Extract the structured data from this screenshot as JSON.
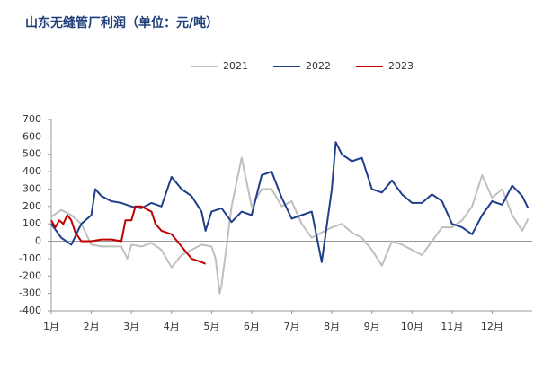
{
  "chart_data": {
    "type": "line",
    "title": "山东无缝管厂利润（单位：元/吨）",
    "xlim": [
      0,
      12
    ],
    "xticks": [
      {
        "value": 0,
        "label": "1月"
      },
      {
        "value": 1,
        "label": "2月"
      },
      {
        "value": 2,
        "label": "3月"
      },
      {
        "value": 3,
        "label": "4月"
      },
      {
        "value": 4,
        "label": "5月"
      },
      {
        "value": 5,
        "label": "6月"
      },
      {
        "value": 6,
        "label": "7月"
      },
      {
        "value": 7,
        "label": "8月"
      },
      {
        "value": 8,
        "label": "9月"
      },
      {
        "value": 9,
        "label": "10月"
      },
      {
        "value": 10,
        "label": "11月"
      },
      {
        "value": 11,
        "label": "12月"
      }
    ],
    "ylim": [
      -400,
      700
    ],
    "yticks": [
      700,
      600,
      500,
      400,
      300,
      200,
      100,
      0,
      -100,
      -200,
      -300,
      -400
    ],
    "legend": "top",
    "series": [
      {
        "name": "2021",
        "color": "#bfbfbf",
        "x": [
          0,
          0.25,
          0.5,
          0.75,
          1,
          1.25,
          1.5,
          1.75,
          1.9,
          2,
          2.25,
          2.5,
          2.75,
          3,
          3.25,
          3.5,
          3.75,
          4,
          4.1,
          4.2,
          4.25,
          4.5,
          4.75,
          5,
          5.25,
          5.5,
          5.75,
          6,
          6.25,
          6.5,
          6.75,
          7,
          7.25,
          7.5,
          7.75,
          8,
          8.25,
          8.5,
          8.75,
          9,
          9.25,
          9.5,
          9.75,
          10,
          10.25,
          10.5,
          10.75,
          11,
          11.25,
          11.5,
          11.75,
          11.9
        ],
        "values": [
          140,
          180,
          150,
          100,
          -20,
          -30,
          -30,
          -30,
          -100,
          -20,
          -30,
          -10,
          -50,
          -150,
          -80,
          -50,
          -20,
          -30,
          -100,
          -300,
          -250,
          200,
          480,
          200,
          300,
          300,
          200,
          230,
          100,
          20,
          50,
          80,
          100,
          50,
          20,
          -50,
          -140,
          0,
          -20,
          -50,
          -80,
          0,
          80,
          80,
          120,
          200,
          380,
          250,
          300,
          150,
          60,
          130
        ]
      },
      {
        "name": "2022",
        "color": "#1f3f8a",
        "x": [
          0,
          0.25,
          0.5,
          0.75,
          1,
          1.1,
          1.25,
          1.5,
          1.75,
          2,
          2.25,
          2.5,
          2.75,
          3,
          3.25,
          3.5,
          3.75,
          3.85,
          4,
          4.25,
          4.5,
          4.75,
          5,
          5.25,
          5.5,
          5.75,
          6,
          6.25,
          6.5,
          6.75,
          7,
          7.1,
          7.25,
          7.5,
          7.75,
          8,
          8.25,
          8.5,
          8.75,
          9,
          9.25,
          9.5,
          9.75,
          10,
          10.25,
          10.5,
          10.75,
          11,
          11.25,
          11.5,
          11.75,
          11.9
        ],
        "values": [
          100,
          20,
          -20,
          100,
          150,
          300,
          260,
          230,
          220,
          200,
          190,
          220,
          200,
          370,
          300,
          260,
          170,
          60,
          170,
          190,
          110,
          170,
          150,
          380,
          400,
          250,
          130,
          150,
          170,
          -120,
          300,
          570,
          500,
          460,
          480,
          300,
          280,
          350,
          270,
          220,
          220,
          270,
          230,
          100,
          80,
          40,
          150,
          230,
          210,
          320,
          260,
          190
        ]
      },
      {
        "name": "2023",
        "color": "#c00000",
        "x": [
          0,
          0.1,
          0.2,
          0.3,
          0.4,
          0.5,
          0.6,
          0.75,
          1,
          1.25,
          1.5,
          1.75,
          1.85,
          2,
          2.1,
          2.25,
          2.5,
          2.6,
          2.75,
          3,
          3.25,
          3.5,
          3.75,
          3.85
        ],
        "values": [
          120,
          80,
          120,
          100,
          150,
          120,
          50,
          0,
          0,
          10,
          10,
          0,
          120,
          120,
          200,
          200,
          170,
          100,
          60,
          40,
          -30,
          -100,
          -120,
          -130
        ]
      }
    ]
  }
}
